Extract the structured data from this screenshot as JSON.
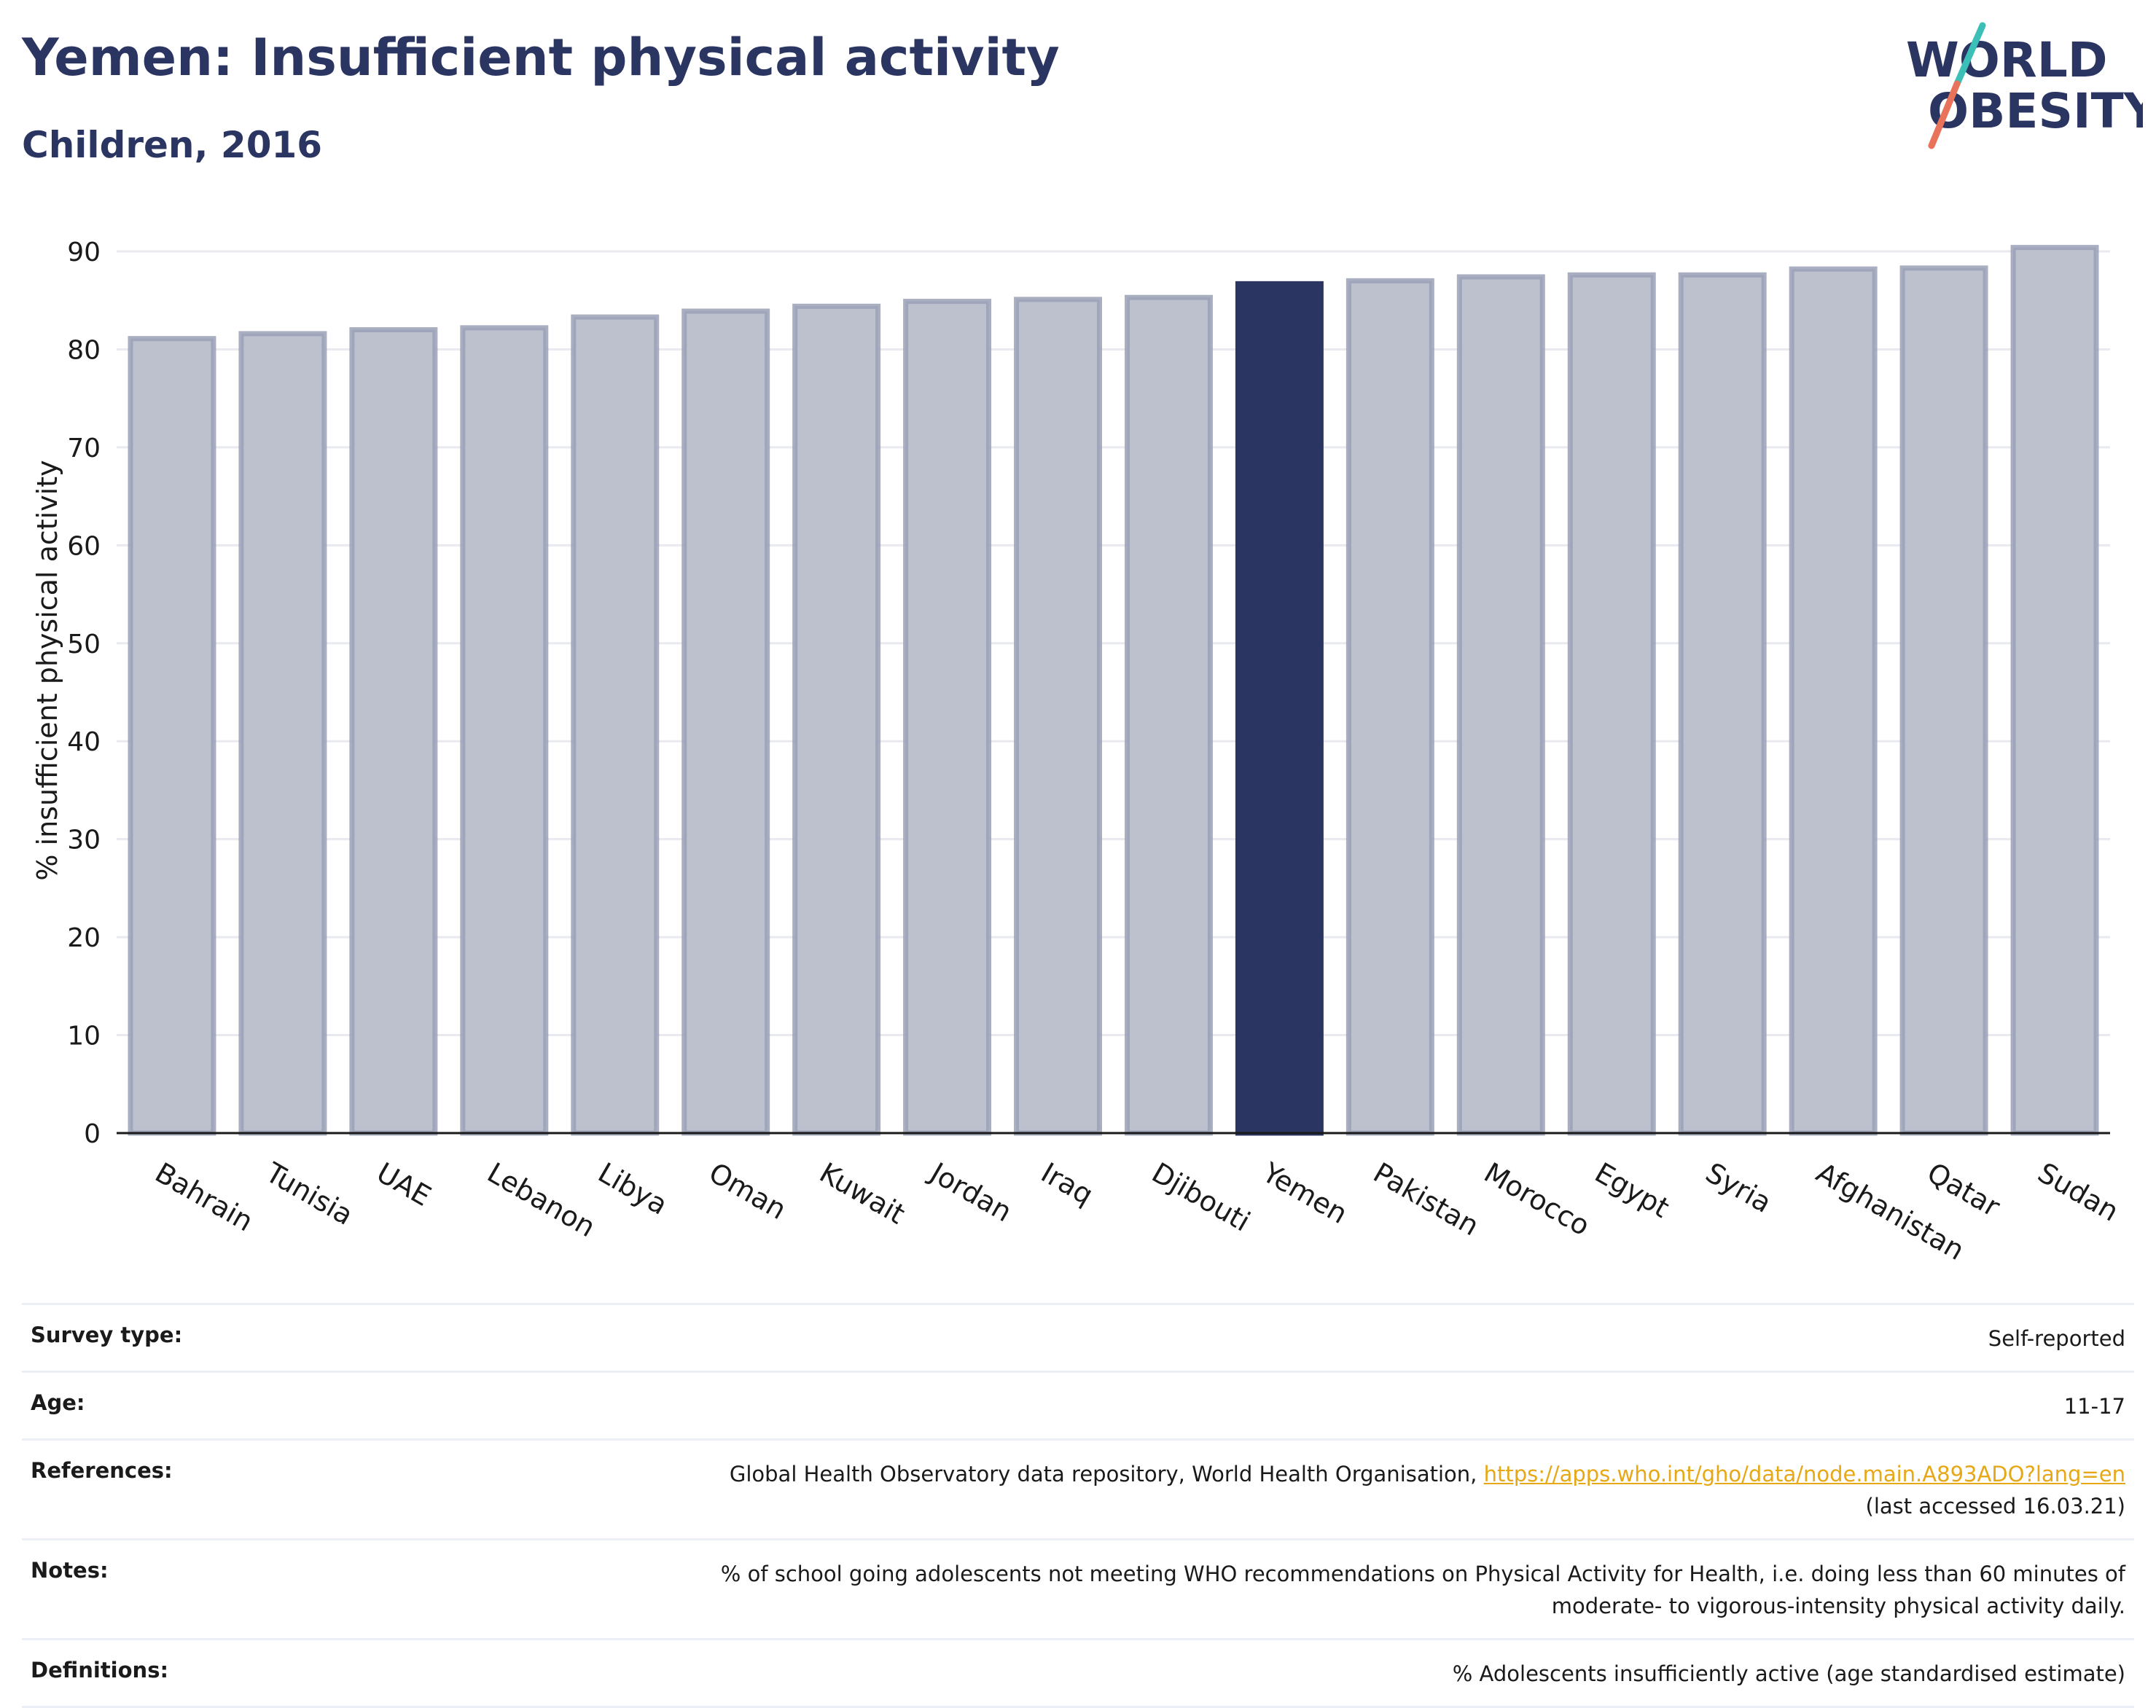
{
  "header": {
    "title": "Yemen: Insufficient physical activity",
    "subtitle": "Children, 2016"
  },
  "logo": {
    "line1": "WORLD",
    "line2": "OBESITY",
    "colors": {
      "text": "#2b3562",
      "slash_top": "#3bbfb6",
      "slash_bottom": "#e8735a"
    }
  },
  "chart_data": {
    "type": "bar",
    "categories": [
      "Bahrain",
      "Tunisia",
      "UAE",
      "Lebanon",
      "Libya",
      "Oman",
      "Kuwait",
      "Jordan",
      "Iraq",
      "Djibouti",
      "Yemen",
      "Pakistan",
      "Morocco",
      "Egypt",
      "Syria",
      "Afghanistan",
      "Qatar",
      "Sudan"
    ],
    "values": [
      81.1,
      81.6,
      82.0,
      82.2,
      83.3,
      83.9,
      84.4,
      84.9,
      85.1,
      85.3,
      86.7,
      87.0,
      87.4,
      87.6,
      87.6,
      88.2,
      88.3,
      90.4
    ],
    "highlight": "Yemen",
    "ylabel": "% insufficient physical activity",
    "xlabel": "",
    "ylim": [
      0,
      90
    ],
    "yticks": [
      0,
      10,
      20,
      30,
      40,
      50,
      60,
      70,
      80,
      90
    ],
    "grid": true,
    "colors": {
      "bar": "#bdc0cd",
      "bar_edge": "#9aa0b6",
      "highlight": "#2b3562",
      "grid": "#e8eaf0"
    }
  },
  "meta": {
    "survey_type": {
      "label": "Survey type:",
      "value": "Self-reported"
    },
    "age": {
      "label": "Age:",
      "value": "11-17"
    },
    "references": {
      "label": "References:",
      "text": "Global Health Observatory data repository, World Health Organisation,",
      "link": "https://apps.who.int/gho/data/node.main.A893ADO?lang=en",
      "accessed": "(last accessed 16.03.21)"
    },
    "notes": {
      "label": "Notes:",
      "line1": "% of school going adolescents not meeting WHO recommendations on Physical Activity for Health, i.e. doing less than 60 minutes of",
      "line2": "moderate- to vigorous-intensity physical activity daily."
    },
    "definitions": {
      "label": "Definitions:",
      "value": "% Adolescents insufficiently active (age standardised estimate)"
    }
  }
}
